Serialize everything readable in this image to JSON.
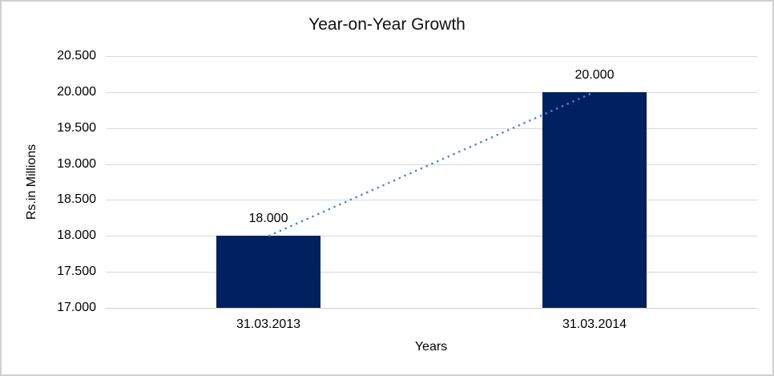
{
  "chart_data": {
    "type": "bar",
    "title": "Year-on-Year Growth",
    "xlabel": "Years",
    "ylabel": "Rs.in Millions",
    "categories": [
      "31.03.2013",
      "31.03.2014"
    ],
    "values": [
      18.0,
      20.0
    ],
    "data_labels": [
      "18.000",
      "20.000"
    ],
    "ylim": [
      17.0,
      20.5
    ],
    "y_ticks": [
      {
        "value": 17.0,
        "label": "17.000"
      },
      {
        "value": 17.5,
        "label": "17.500"
      },
      {
        "value": 18.0,
        "label": "18.000"
      },
      {
        "value": 18.5,
        "label": "18.500"
      },
      {
        "value": 19.0,
        "label": "19.000"
      },
      {
        "value": 19.5,
        "label": "19.500"
      },
      {
        "value": 20.0,
        "label": "20.000"
      },
      {
        "value": 20.5,
        "label": "20.500"
      }
    ],
    "grid": true,
    "legend": false,
    "trendline": {
      "style": "dotted",
      "color": "#4e86c8",
      "from_category": 0,
      "to_category": 1
    },
    "colors": {
      "bar": "#002060",
      "gridline": "#d9d9d9",
      "axis_line": "#d0d0d0",
      "text": "#000000",
      "title_text": "#111111"
    }
  }
}
